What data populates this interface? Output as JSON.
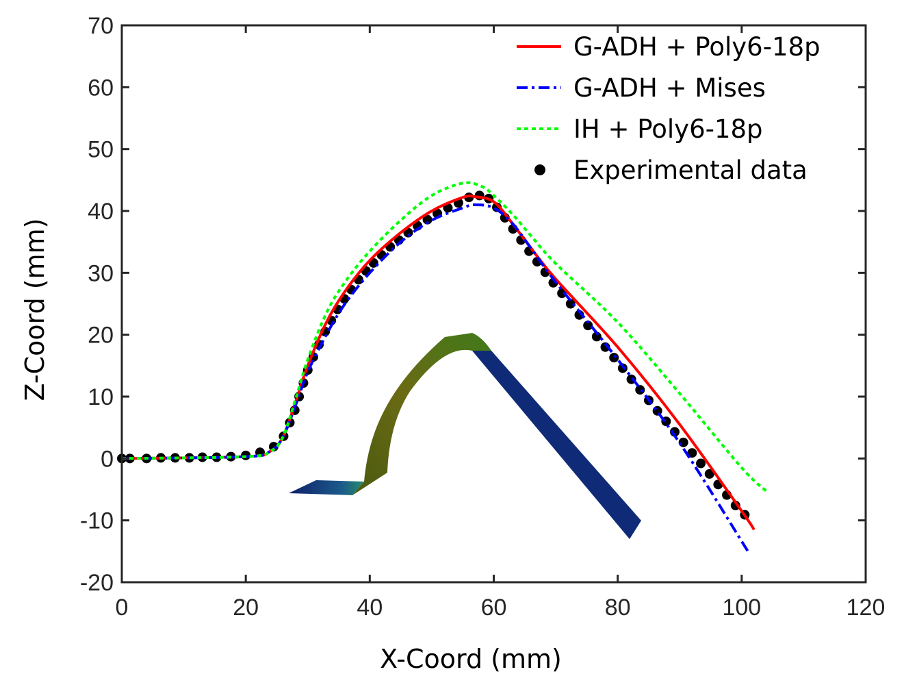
{
  "chart_data": {
    "type": "line",
    "title": "",
    "xlabel": "X-Coord (mm)",
    "ylabel": "Z-Coord (mm)",
    "xlim": [
      0,
      120
    ],
    "ylim": [
      -20,
      70
    ],
    "xticks": [
      "0",
      "20",
      "40",
      "60",
      "80",
      "100",
      "120"
    ],
    "yticks": [
      "-20",
      "-10",
      "0",
      "10",
      "20",
      "30",
      "40",
      "50",
      "60",
      "70"
    ],
    "grid": false,
    "legend_position": "top-right",
    "series": [
      {
        "name": "G-ADH + Poly6-18p",
        "style": "solid",
        "color": "#ff0000",
        "x": [
          0,
          20,
          24,
          26,
          28,
          30,
          33,
          36,
          40,
          45,
          50,
          55,
          57,
          60,
          63,
          66,
          70,
          80,
          90,
          100,
          102
        ],
        "y": [
          0,
          0.3,
          1.2,
          3.5,
          9,
          15,
          22,
          27,
          32,
          36.5,
          40,
          42.2,
          42.3,
          41.5,
          38,
          34,
          29,
          18,
          5.5,
          -8.5,
          -11.5
        ]
      },
      {
        "name": "G-ADH + Mises",
        "style": "dashdot",
        "color": "#0000ff",
        "x": [
          0,
          20,
          24,
          26,
          28,
          30,
          33,
          36,
          40,
          45,
          50,
          55,
          57,
          60,
          63,
          66,
          70,
          80,
          90,
          101
        ],
        "y": [
          0,
          0.3,
          1.2,
          3.5,
          8.5,
          14,
          20,
          25,
          30,
          35,
          38.5,
          40.5,
          41,
          40.5,
          38,
          34,
          28.5,
          16,
          2.5,
          -15
        ]
      },
      {
        "name": "IH + Poly6-18p",
        "style": "dotted",
        "color": "#00ff00",
        "x": [
          0,
          20,
          24,
          26,
          28,
          30,
          33,
          36,
          40,
          45,
          50,
          55,
          58,
          60,
          63,
          66,
          70,
          80,
          90,
          100,
          104
        ],
        "y": [
          0,
          0.3,
          1.2,
          3.5,
          9.5,
          16,
          23.5,
          28.5,
          33.5,
          38.5,
          42.5,
          44.5,
          44,
          42.5,
          39.5,
          36,
          31.5,
          22,
          10.5,
          -1.5,
          -5.3
        ]
      },
      {
        "name": "Experimental data",
        "style": "markers",
        "color": "#000000",
        "x": [
          0,
          1.3,
          4,
          6.3,
          8.6,
          10.9,
          13,
          15.3,
          17.6,
          20,
          22.3,
          24.5,
          26.1,
          27.1,
          27.9,
          28.6,
          29.3,
          30,
          30.9,
          31.8,
          32.8,
          33.8,
          34.8,
          35.9,
          37,
          38.2,
          39.4,
          40.6,
          41.9,
          43.3,
          44.7,
          46.2,
          47.7,
          49.3,
          50.9,
          52.6,
          54.3,
          56,
          57.7,
          59.2,
          60.5,
          61.8,
          63.1,
          64.4,
          65.7,
          67,
          68.3,
          69.6,
          71,
          72.4,
          73.8,
          75.2,
          76.6,
          78,
          79.4,
          80.8,
          82.2,
          83.6,
          85,
          86.4,
          87.8,
          89.2,
          90.6,
          92,
          93.4,
          94.8,
          96.2,
          97.6,
          99,
          100.5
        ],
        "y": [
          0,
          0,
          0,
          0.1,
          0.1,
          0.1,
          0.2,
          0.2,
          0.3,
          0.5,
          1,
          1.9,
          3.6,
          5.8,
          7.8,
          10,
          12.2,
          14.3,
          16.4,
          18.4,
          20.5,
          22.3,
          24.1,
          25.8,
          27.3,
          28.9,
          30.3,
          31.6,
          32.9,
          34.2,
          35.3,
          36.5,
          37.6,
          38.6,
          39.6,
          40.5,
          41.3,
          42.2,
          42.5,
          42,
          40.6,
          38.9,
          37.1,
          35.3,
          33.5,
          31.8,
          30.1,
          28.4,
          26.7,
          25,
          23.2,
          21.5,
          19.7,
          18,
          16.3,
          14.6,
          12.8,
          11.1,
          9.4,
          7.7,
          6,
          4.3,
          2.6,
          0.9,
          -0.8,
          -2.5,
          -4.2,
          -5.9,
          -7.6,
          -9.1
        ]
      }
    ],
    "inset": "finite-element mesh of deformed sheet"
  }
}
